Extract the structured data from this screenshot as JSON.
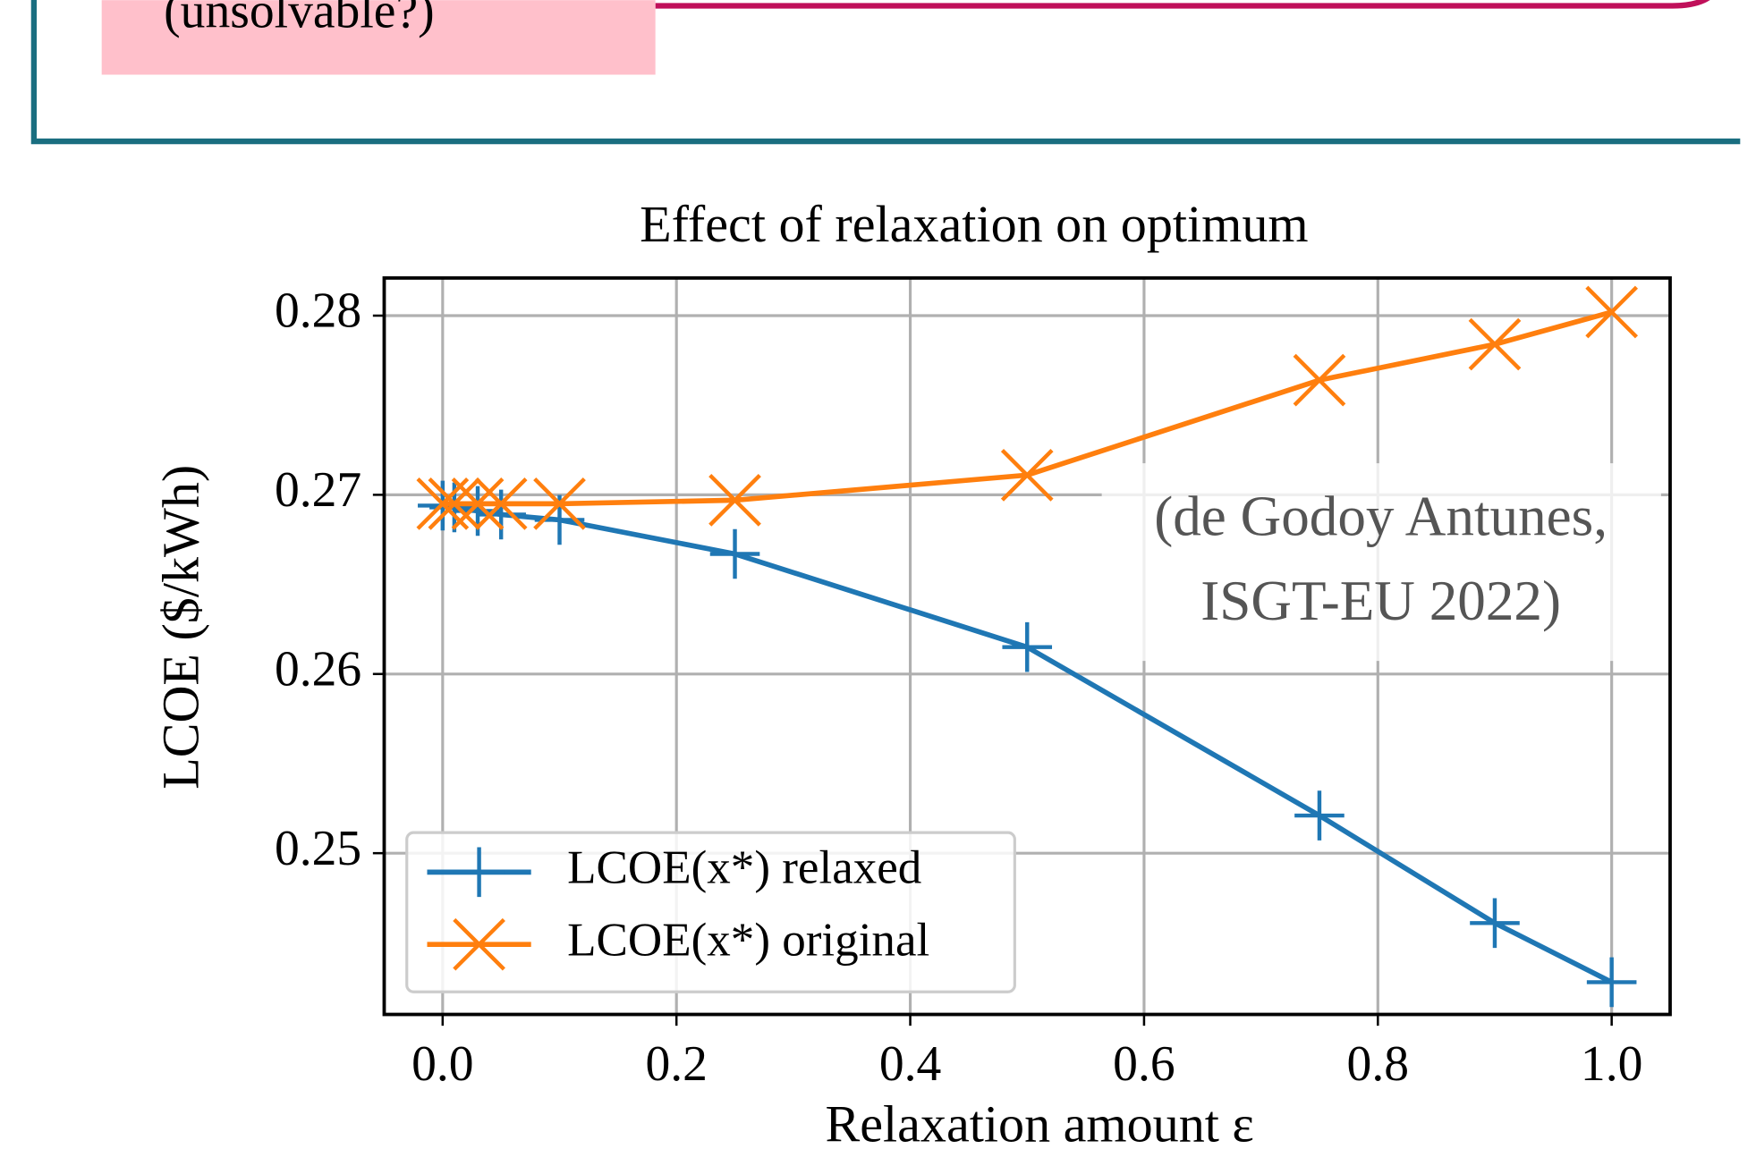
{
  "header": {
    "note": "(unsolvable?)"
  },
  "chart_data": {
    "type": "line",
    "title": "Effect of relaxation on optimum",
    "xlabel": "Relaxation amount ε",
    "ylabel": "LCOE ($/kWh)",
    "x": [
      0,
      0.01,
      0.03,
      0.05,
      0.1,
      0.25,
      0.5,
      0.75,
      0.9,
      1.0
    ],
    "series": [
      {
        "name": "LCOE(x*) relaxed",
        "color": "#1f77b4",
        "marker": "plus",
        "values": [
          0.2694,
          0.2693,
          0.2691,
          0.2689,
          0.2686,
          0.2667,
          0.2615,
          0.2521,
          0.2461,
          0.2428
        ]
      },
      {
        "name": "LCOE(x*) original",
        "color": "#ff7f0e",
        "marker": "x",
        "values": [
          0.2695,
          0.2695,
          0.2695,
          0.2695,
          0.2695,
          0.2697,
          0.2711,
          0.2764,
          0.2784,
          0.2802
        ]
      }
    ],
    "xlim": [
      -0.05,
      1.05
    ],
    "ylim": [
      0.241,
      0.2821
    ],
    "xticks": [
      {
        "value": 0,
        "label": "0.0"
      },
      0.2,
      0.4,
      0.6,
      0.8,
      {
        "value": 1,
        "label": "1.0"
      }
    ],
    "yticks": [
      0.25,
      0.26,
      0.27,
      0.28
    ],
    "grid": true,
    "legend": "lower left",
    "annotation": [
      "(de Godoy Antunes,",
      "ISGT-EU 2022)"
    ]
  }
}
